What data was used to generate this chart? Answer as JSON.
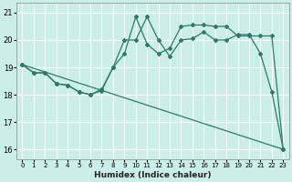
{
  "xlabel": "Humidex (Indice chaleur)",
  "background_color": "#cceee8",
  "grid_color": "#ffffff",
  "line_color": "#2d7a6b",
  "xlim": [
    -0.5,
    23.5
  ],
  "ylim": [
    15.65,
    21.35
  ],
  "yticks": [
    16,
    17,
    18,
    19,
    20,
    21
  ],
  "xticks": [
    0,
    1,
    2,
    3,
    4,
    5,
    6,
    7,
    8,
    9,
    10,
    11,
    12,
    13,
    14,
    15,
    16,
    17,
    18,
    19,
    20,
    21,
    22,
    23
  ],
  "curve1_x": [
    0,
    1,
    2,
    3,
    4,
    5,
    6,
    7,
    8,
    9,
    10,
    11,
    12,
    13,
    14,
    15,
    16,
    17,
    18,
    19,
    20,
    21,
    22,
    23
  ],
  "curve1_y": [
    19.1,
    18.8,
    18.8,
    18.4,
    18.35,
    18.1,
    18.0,
    18.15,
    19.0,
    19.5,
    20.85,
    19.85,
    19.5,
    19.7,
    20.5,
    20.55,
    20.55,
    20.5,
    20.5,
    20.15,
    20.15,
    20.15,
    20.15,
    16.0
  ],
  "curve2_x": [
    0,
    1,
    2,
    3,
    4,
    5,
    6,
    7,
    8,
    9,
    10,
    11,
    12,
    13,
    14,
    15,
    16,
    17,
    18,
    19,
    20,
    21,
    22,
    23
  ],
  "curve2_y": [
    19.1,
    18.8,
    18.8,
    18.4,
    18.35,
    18.1,
    18.0,
    18.2,
    19.0,
    20.0,
    20.0,
    20.85,
    20.0,
    19.4,
    20.0,
    20.05,
    20.3,
    20.0,
    20.0,
    20.2,
    20.2,
    19.5,
    18.1,
    16.0
  ],
  "trend_x": [
    0,
    23
  ],
  "trend_y": [
    19.1,
    16.0
  ]
}
